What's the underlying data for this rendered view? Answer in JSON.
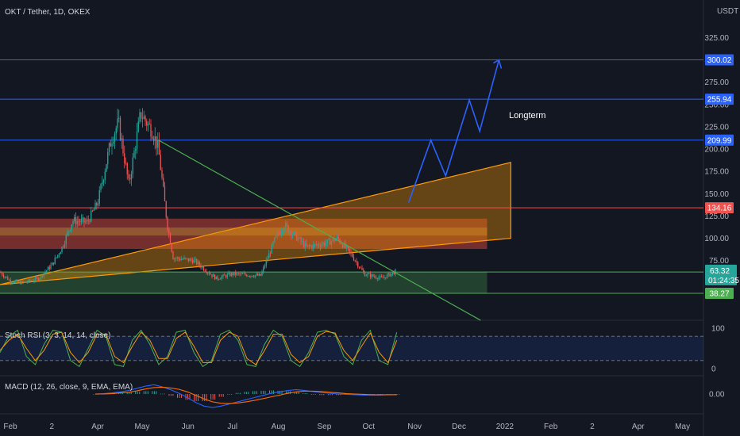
{
  "header": {
    "symbol": "OKT / Tether, 1D, OKEX",
    "currency": "USDT"
  },
  "colors": {
    "background": "#131722",
    "up": "#26a69a",
    "down": "#ef5350",
    "level_line": "#2962ff",
    "resistance_line": "#ef5350",
    "support_line": "#4caf50",
    "trend_line": "#4caf50",
    "triangle_fill": "#ff9800",
    "support_zone": "#4caf50",
    "red_zone": "#e84b3c",
    "forecast_line": "#2962ff",
    "stoch_k": "#2196f3",
    "stoch_d": "#ff9800",
    "macd_line": "#2962ff",
    "signal_line": "#ff6d00"
  },
  "chart_data": [
    {
      "type": "candlestick",
      "title": "OKT / Tether, 1D, OKEX",
      "y_unit": "USDT",
      "y_ticks": [
        "325.00",
        "300.00",
        "275.00",
        "250.00",
        "225.00",
        "200.00",
        "175.00",
        "150.00",
        "125.00",
        "100.00",
        "75.00"
      ],
      "x_ticks": [
        "Feb",
        "2",
        "Apr",
        "May",
        "Jun",
        "Jul",
        "Aug",
        "Sep",
        "Oct",
        "Nov",
        "Dec",
        "2022",
        "Feb",
        "2",
        "Apr",
        "May"
      ],
      "ylim": [
        25,
        350
      ],
      "price_path": [
        {
          "t": "2021-01-25",
          "price": 62
        },
        {
          "t": "2021-02-01",
          "price": 52
        },
        {
          "t": "2021-02-10",
          "price": 50
        },
        {
          "t": "2021-02-20",
          "price": 55
        },
        {
          "t": "2021-03-01",
          "price": 70
        },
        {
          "t": "2021-03-08",
          "price": 90
        },
        {
          "t": "2021-03-15",
          "price": 120
        },
        {
          "t": "2021-03-25",
          "price": 118
        },
        {
          "t": "2021-04-01",
          "price": 140
        },
        {
          "t": "2021-04-10",
          "price": 210
        },
        {
          "t": "2021-04-15",
          "price": 230
        },
        {
          "t": "2021-04-22",
          "price": 160
        },
        {
          "t": "2021-04-30",
          "price": 240
        },
        {
          "t": "2021-05-08",
          "price": 220
        },
        {
          "t": "2021-05-12",
          "price": 200
        },
        {
          "t": "2021-05-18",
          "price": 115
        },
        {
          "t": "2021-05-22",
          "price": 78
        },
        {
          "t": "2021-06-05",
          "price": 75
        },
        {
          "t": "2021-06-20",
          "price": 55
        },
        {
          "t": "2021-07-01",
          "price": 60
        },
        {
          "t": "2021-07-20",
          "price": 58
        },
        {
          "t": "2021-07-30",
          "price": 100
        },
        {
          "t": "2021-08-05",
          "price": 115
        },
        {
          "t": "2021-08-20",
          "price": 90
        },
        {
          "t": "2021-09-03",
          "price": 95
        },
        {
          "t": "2021-09-10",
          "price": 100
        },
        {
          "t": "2021-09-20",
          "price": 80
        },
        {
          "t": "2021-09-28",
          "price": 60
        },
        {
          "t": "2021-10-10",
          "price": 55
        },
        {
          "t": "2021-10-20",
          "price": 63.32
        }
      ],
      "current_price": "63.32",
      "countdown": "01:24:35",
      "levels": [
        {
          "value": 300.02,
          "label": "300.02",
          "color": "#2962ff"
        },
        {
          "value": 255.94,
          "label": "255.94",
          "color": "#2962ff"
        },
        {
          "value": 209.99,
          "label": "209.99",
          "color": "#2962ff"
        },
        {
          "value": 134.16,
          "label": "134.16",
          "color": "#ef5350"
        },
        {
          "value": 62.11,
          "label": "62.11",
          "color": "#4caf50"
        },
        {
          "value": 38.27,
          "label": "38.27",
          "color": "#4caf50"
        }
      ],
      "annotations": [
        {
          "text": "Longterm"
        }
      ],
      "drawings": {
        "forecast_path": [
          {
            "t": "2021-10-28",
            "price": 140
          },
          {
            "t": "2021-11-12",
            "price": 210
          },
          {
            "t": "2021-11-22",
            "price": 170
          },
          {
            "t": "2021-12-08",
            "price": 255
          },
          {
            "t": "2021-12-15",
            "price": 220
          },
          {
            "t": "2021-12-28",
            "price": 300
          }
        ],
        "triangle": [
          {
            "t": "2021-01-25",
            "price": 48
          },
          {
            "t": "2022-01-05",
            "price": 185
          },
          {
            "t": "2022-01-05",
            "price": 100
          }
        ],
        "descending_trendline": [
          {
            "t": "2021-05-12",
            "price": 210
          },
          {
            "t": "2022-01-05",
            "price": 8
          }
        ],
        "red_zone": {
          "from": "2021-01-25",
          "to": "2021-12-20",
          "low": 88,
          "high": 122
        },
        "support_zone": {
          "from": "2021-01-25",
          "to": "2021-12-20",
          "low": 38.27,
          "high": 62.11
        }
      }
    },
    {
      "type": "line",
      "title": "Stoch RSI (3, 3, 14, 14, close)",
      "y_ticks": [
        "100",
        "0"
      ],
      "ylim": [
        0,
        100
      ],
      "bands": [
        80,
        20
      ],
      "series": [
        {
          "name": "K",
          "values": [
            40,
            80,
            95,
            30,
            10,
            60,
            95,
            90,
            20,
            5,
            50,
            95,
            80,
            10,
            5,
            70,
            95,
            60,
            10,
            30,
            90,
            95,
            40,
            5,
            20,
            85,
            95,
            70,
            10,
            5,
            60,
            95,
            80,
            20,
            5,
            40,
            90,
            95,
            85,
            30,
            10,
            70,
            95,
            20,
            10,
            90
          ]
        },
        {
          "name": "D",
          "values": [
            45,
            70,
            85,
            50,
            20,
            45,
            85,
            90,
            40,
            15,
            40,
            85,
            85,
            30,
            15,
            55,
            90,
            70,
            25,
            25,
            75,
            90,
            55,
            15,
            15,
            70,
            90,
            80,
            25,
            10,
            45,
            85,
            85,
            35,
            15,
            30,
            80,
            92,
            88,
            45,
            20,
            55,
            88,
            40,
            15,
            70
          ]
        }
      ]
    },
    {
      "type": "bar",
      "title": "MACD (12, 26, close, 9, EMA, EMA)",
      "y_ticks": [
        "0.00"
      ],
      "series": [
        {
          "name": "MACD",
          "values": [
            0,
            1,
            3,
            6,
            10,
            16,
            22,
            26,
            20,
            12,
            2,
            -10,
            -24,
            -34,
            -38,
            -34,
            -28,
            -22,
            -16,
            -10,
            -4,
            2,
            6,
            10,
            12,
            10,
            7,
            4,
            2,
            0,
            -1,
            -2,
            -3,
            -3,
            -3,
            -2,
            -2
          ]
        },
        {
          "name": "Signal",
          "values": [
            0,
            0,
            1,
            3,
            5,
            9,
            14,
            18,
            19,
            17,
            13,
            6,
            -4,
            -14,
            -22,
            -26,
            -27,
            -25,
            -22,
            -18,
            -13,
            -8,
            -3,
            2,
            6,
            8,
            8,
            7,
            5,
            3,
            1,
            0,
            -1,
            -2,
            -2,
            -2,
            -2
          ]
        },
        {
          "name": "Histogram",
          "values": [
            0,
            1,
            2,
            3,
            5,
            7,
            8,
            8,
            1,
            -5,
            -11,
            -16,
            -20,
            -20,
            -16,
            -8,
            -1,
            3,
            6,
            8,
            9,
            10,
            9,
            8,
            6,
            2,
            -1,
            -3,
            -3,
            -3,
            -2,
            -2,
            -2,
            -1,
            -1,
            0,
            0
          ]
        }
      ]
    }
  ]
}
